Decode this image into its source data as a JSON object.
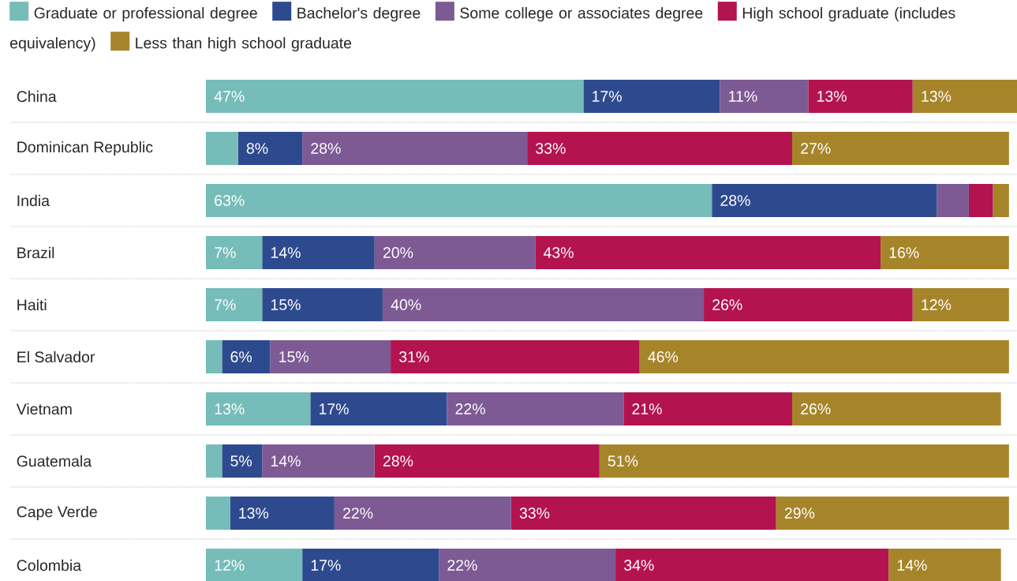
{
  "chart_data": {
    "type": "bar",
    "orientation": "horizontal",
    "stacked": true,
    "legend": "top",
    "grid": "y",
    "categories": [
      "China",
      "Dominican Republic",
      "India",
      "Brazil",
      "Haiti",
      "El Salvador",
      "Vietnam",
      "Guatemala",
      "Cape Verde",
      "Colombia"
    ],
    "series": [
      {
        "name": "Graduate or professional degree",
        "color": "#76bcb9",
        "values": [
          47,
          4,
          63,
          7,
          7,
          2,
          13,
          2,
          3,
          12
        ],
        "value_labels": [
          "47%",
          null,
          "63%",
          "7%",
          "7%",
          null,
          "13%",
          null,
          null,
          "12%"
        ]
      },
      {
        "name": "Bachelor's degree",
        "color": "#2e4a8f",
        "values": [
          17,
          8,
          28,
          14,
          15,
          6,
          17,
          5,
          13,
          17
        ],
        "value_labels": [
          "17%",
          "8%",
          "28%",
          "14%",
          "15%",
          "6%",
          "17%",
          "5%",
          "13%",
          "17%"
        ]
      },
      {
        "name": "Some college or associates degree",
        "color": "#7e5a94",
        "values": [
          11,
          28,
          4,
          20,
          40,
          15,
          22,
          14,
          22,
          22
        ],
        "value_labels": [
          "11%",
          "28%",
          null,
          "20%",
          "40%",
          "15%",
          "22%",
          "14%",
          "22%",
          "22%"
        ]
      },
      {
        "name": "High school graduate (includes equivalency)",
        "color": "#b3134f",
        "values": [
          13,
          33,
          3,
          43,
          26,
          31,
          21,
          28,
          33,
          34
        ],
        "value_labels": [
          "13%",
          "33%",
          null,
          "43%",
          "26%",
          "31%",
          "21%",
          "28%",
          "33%",
          "34%"
        ]
      },
      {
        "name": "Less than high school graduate",
        "color": "#a6852a",
        "values": [
          13,
          27,
          2,
          16,
          12,
          46,
          26,
          51,
          29,
          14
        ],
        "value_labels": [
          "13%",
          "27%",
          null,
          "16%",
          "12%",
          "46%",
          "26%",
          "51%",
          "29%",
          "14%"
        ]
      }
    ]
  }
}
